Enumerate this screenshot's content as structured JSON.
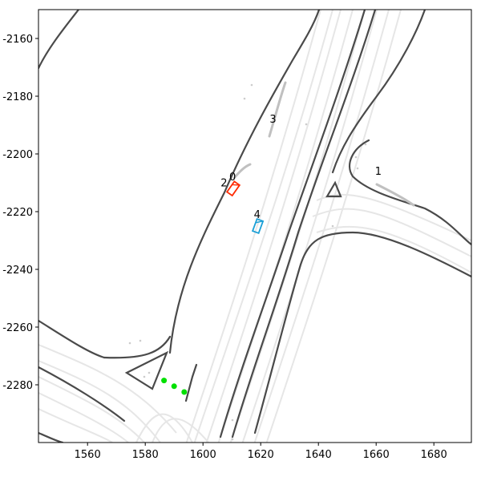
{
  "colors": {
    "background": "#ffffff",
    "road_boundary": "#4a4a4a",
    "lane_line": "#e6e6e6",
    "history_trail": "#c0c0c0",
    "agent_ego": "#ff2a00",
    "agent_target": "#1a9fd6",
    "waypoints": "#00e000"
  },
  "x_ticks": [
    1560,
    1580,
    1600,
    1620,
    1640,
    1660,
    1680
  ],
  "y_ticks": [
    -2160,
    -2180,
    -2200,
    -2220,
    -2240,
    -2260,
    -2280
  ],
  "x_range": [
    1543,
    1693
  ],
  "y_range": [
    -2300,
    -2150
  ],
  "agents": [
    {
      "id": "0",
      "x": 1610.5,
      "y": -2212.0,
      "heading_deg": 55,
      "color": "agent_ego"
    },
    {
      "id": "1",
      "x": 1661.0,
      "y": -2210.0,
      "heading_deg": 0,
      "color": "none"
    },
    {
      "id": "2",
      "x": 1607.5,
      "y": -2214.0,
      "heading_deg": 55,
      "color": "none"
    },
    {
      "id": "3",
      "x": 1624.5,
      "y": -2192.0,
      "heading_deg": 0,
      "color": "none"
    },
    {
      "id": "4",
      "x": 1619.0,
      "y": -2225.0,
      "heading_deg": 70,
      "color": "agent_target"
    }
  ],
  "waypoints": [
    {
      "x": 1586.5,
      "y": -2278.5
    },
    {
      "x": 1590.0,
      "y": -2280.5
    },
    {
      "x": 1593.5,
      "y": -2282.5
    }
  ]
}
